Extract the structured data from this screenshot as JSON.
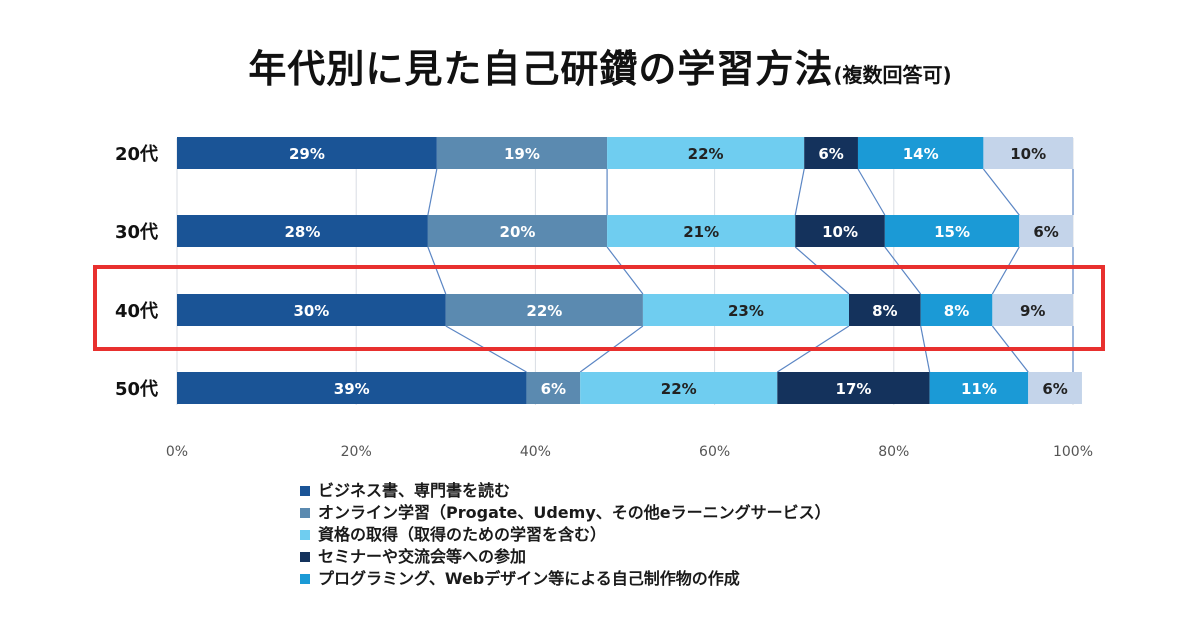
{
  "chart_data": {
    "type": "bar",
    "orientation": "horizontal",
    "stacked": true,
    "title": "年代別に見た自己研鑽の学習方法",
    "subtitle": "(複数回答可)",
    "categories": [
      "20代",
      "30代",
      "40代",
      "50代"
    ],
    "highlight_category": "40代",
    "highlight_color": "#e8302e",
    "xlim": [
      0,
      100
    ],
    "xticks": [
      "0%",
      "20%",
      "40%",
      "60%",
      "80%",
      "100%"
    ],
    "grid": true,
    "series": [
      {
        "name": "ビジネス書、専門書を読む",
        "color": "#1a5496",
        "values": [
          29,
          28,
          30,
          39
        ],
        "labels": [
          "29%",
          "28%",
          "30%",
          "39%"
        ]
      },
      {
        "name": "オンライン学習（Progate、Udemy、その他eラーニングサービス）",
        "color": "#5b8ab0",
        "values": [
          19,
          20,
          22,
          6
        ],
        "labels": [
          "19%",
          "20%",
          "22%",
          "6%"
        ]
      },
      {
        "name": "資格の取得（取得のための学習を含む）",
        "color": "#6fcdf0",
        "values": [
          22,
          21,
          23,
          22
        ],
        "labels": [
          "22%",
          "21%",
          "23%",
          "22%"
        ]
      },
      {
        "name": "セミナーや交流会等への参加",
        "color": "#14325c",
        "values": [
          6,
          10,
          8,
          17
        ],
        "labels": [
          "6%",
          "10%",
          "8%",
          "17%"
        ]
      },
      {
        "name": "プログラミング、Webデザイン等による自己制作物の作成",
        "color": "#1b9ad6",
        "values": [
          14,
          15,
          8,
          11
        ],
        "labels": [
          "14%",
          "15%",
          "8%",
          "11%"
        ]
      },
      {
        "name": "",
        "color": "#c4d4ea",
        "values": [
          10,
          6,
          9,
          6
        ],
        "labels": [
          "10%",
          "6%",
          "9%",
          "6%"
        ]
      }
    ],
    "legend_position": "bottom"
  }
}
